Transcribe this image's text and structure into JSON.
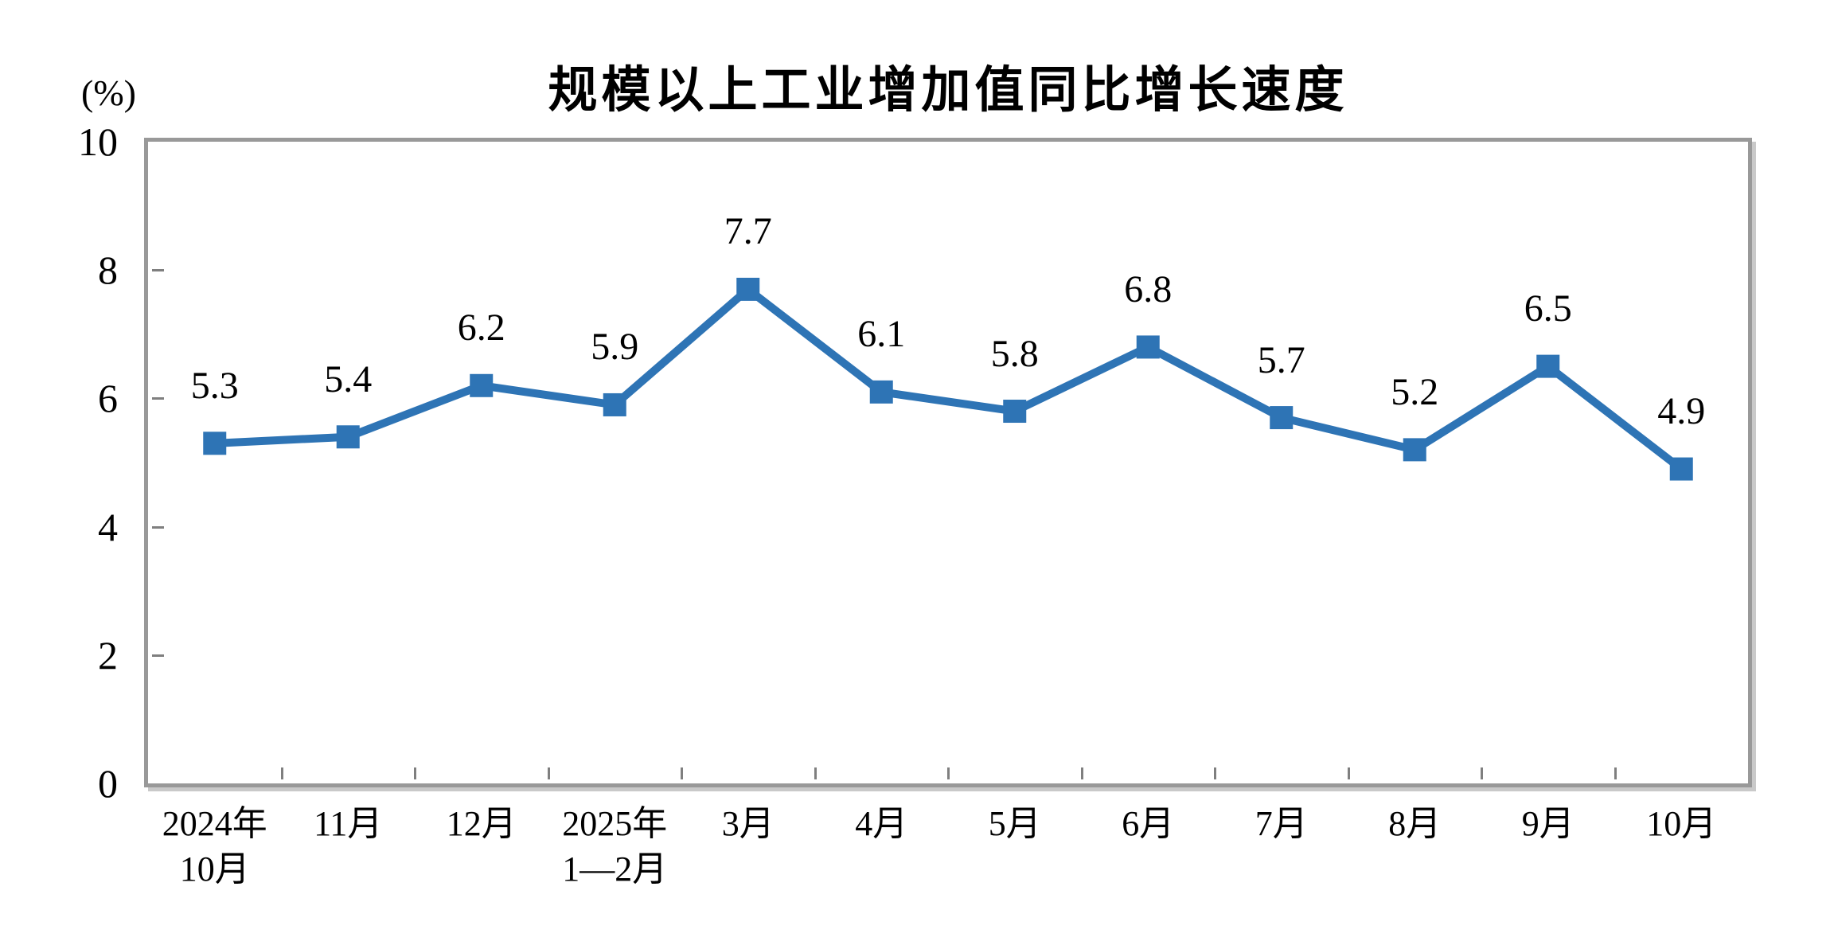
{
  "chart_data": {
    "type": "line",
    "title": "规模以上工业增加值同比增长速度",
    "unit_label": "(%)",
    "categories": [
      [
        "2024年",
        "10月"
      ],
      [
        "11月"
      ],
      [
        "12月"
      ],
      [
        "2025年",
        "1—2月"
      ],
      [
        "3月"
      ],
      [
        "4月"
      ],
      [
        "5月"
      ],
      [
        "6月"
      ],
      [
        "7月"
      ],
      [
        "8月"
      ],
      [
        "9月"
      ],
      [
        "10月"
      ]
    ],
    "values": [
      5.3,
      5.4,
      6.2,
      5.9,
      7.7,
      6.1,
      5.8,
      6.8,
      5.7,
      5.2,
      6.5,
      4.9
    ],
    "data_labels": [
      "5.3",
      "5.4",
      "6.2",
      "5.9",
      "7.7",
      "6.1",
      "5.8",
      "6.8",
      "5.7",
      "5.2",
      "6.5",
      "4.9"
    ],
    "ylim": [
      0,
      10
    ],
    "yticks": [
      0,
      2,
      4,
      6,
      8,
      10
    ],
    "grid": false,
    "legend": "none",
    "marker": "square",
    "label_position": "above",
    "colors": {
      "line": "#2E74B5",
      "marker": "#2E74B5",
      "axis_border": "#999999",
      "tick": "#7F7F7F",
      "border_shadow": "#C9C9C9",
      "text": "#000000"
    }
  }
}
